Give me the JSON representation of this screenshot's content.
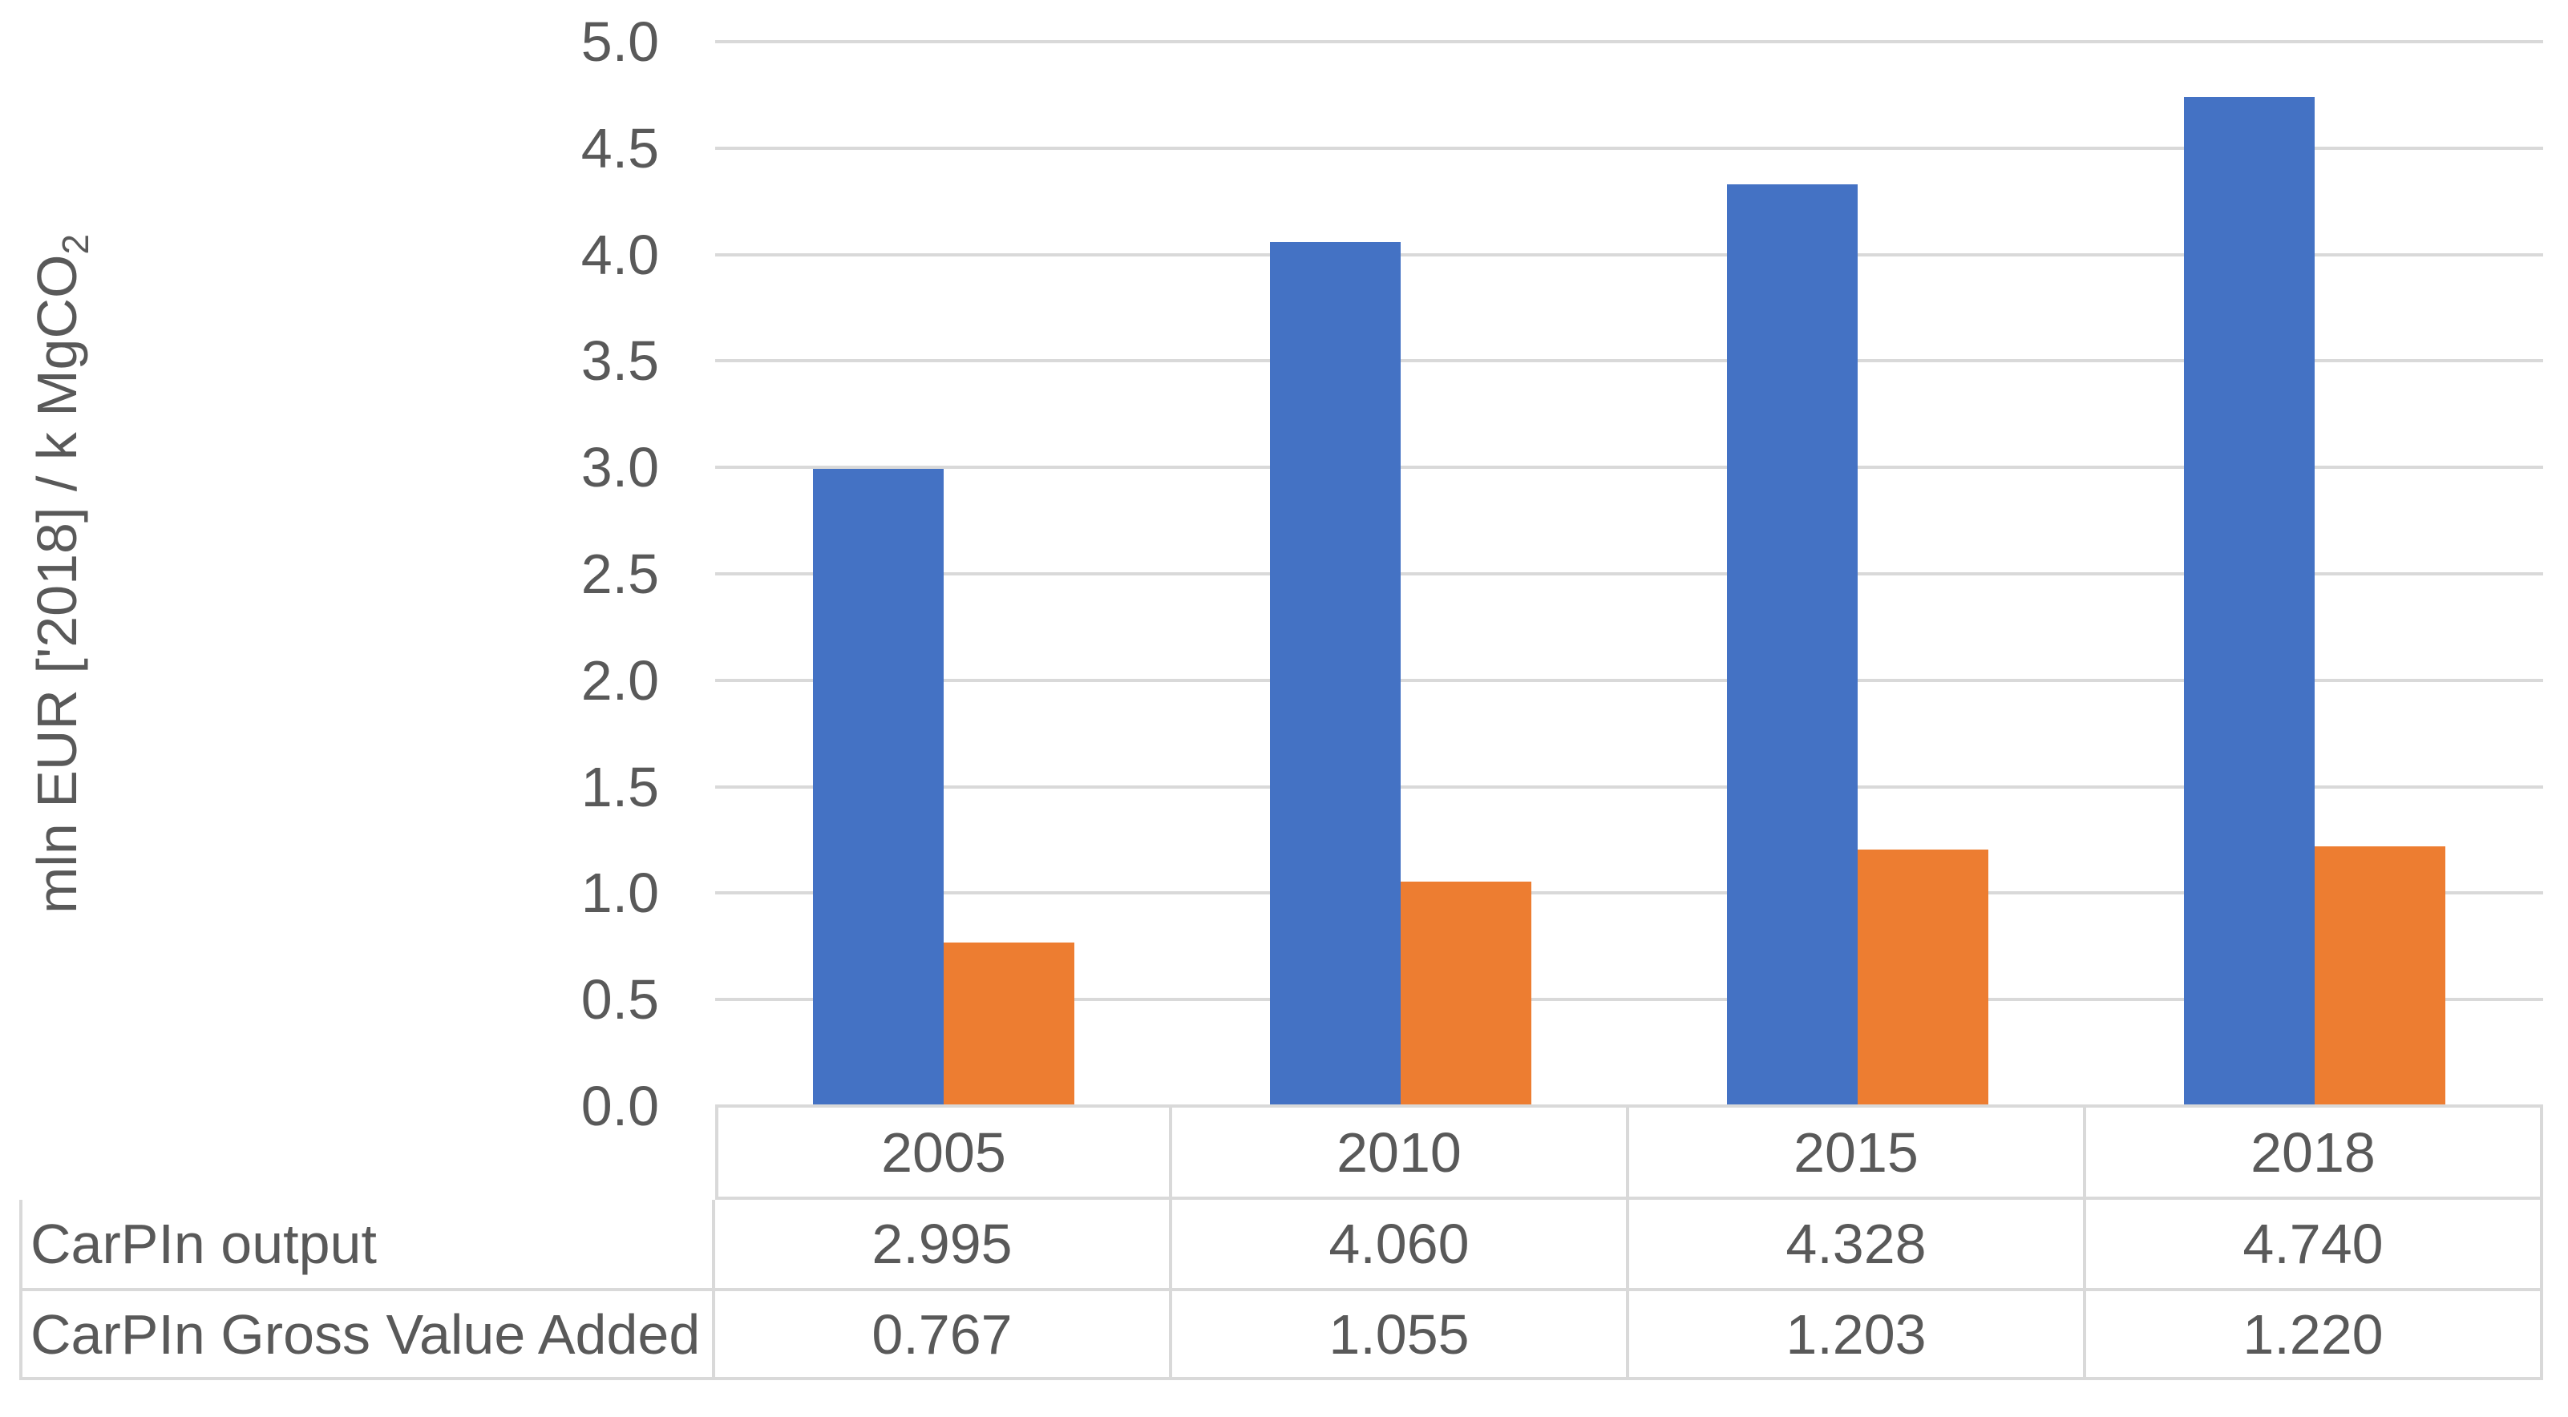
{
  "chart_data": {
    "type": "bar",
    "title": "",
    "categories": [
      "2005",
      "2010",
      "2015",
      "2018"
    ],
    "series": [
      {
        "name": "CarPIn output",
        "color": "#4472C4",
        "values": [
          "2.995",
          "4.060",
          "4.328",
          "4.740"
        ]
      },
      {
        "name": "CarPIn Gross Value Added",
        "color": "#ED7D31",
        "values": [
          "0.767",
          "1.055",
          "1.203",
          "1.220"
        ]
      }
    ],
    "ylabel_main": "mln EUR ['2018] / k MgCO",
    "ylabel_sub": "2",
    "xlabel": "",
    "ylim": [
      0,
      5
    ],
    "ytick_step": 0.5,
    "yticks": [
      "0.0",
      "0.5",
      "1.0",
      "1.5",
      "2.0",
      "2.5",
      "3.0",
      "3.5",
      "4.0",
      "4.5",
      "5.0"
    ],
    "grid": true,
    "legend_position": "data-table-below-chart",
    "colors": {
      "gridline": "#D9D9D9",
      "table_border": "#D9D9D9",
      "text": "#595959",
      "background": "#FFFFFF"
    }
  }
}
